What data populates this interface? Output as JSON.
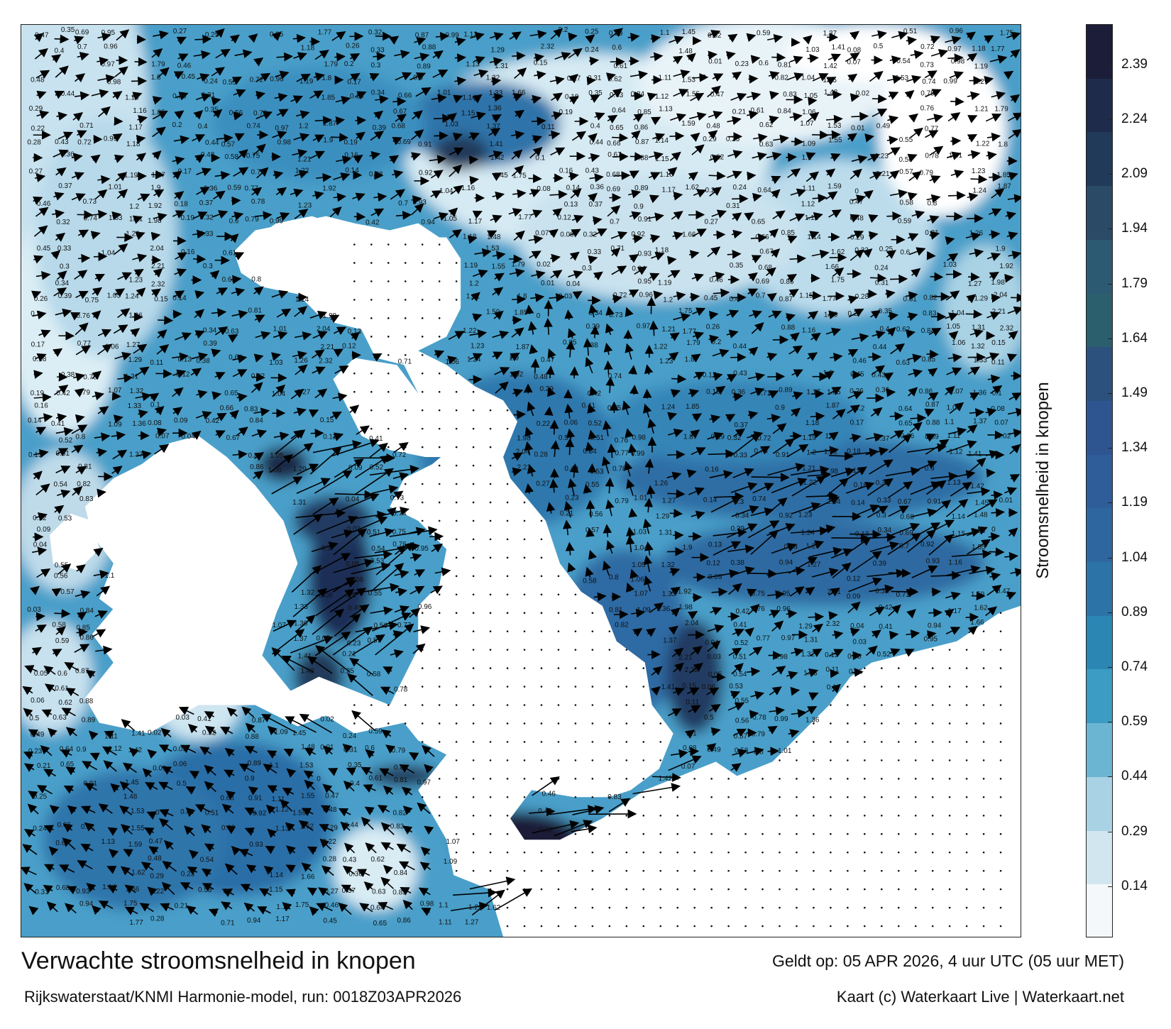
{
  "title": "Verwachte stroomsnelheid in knopen",
  "subtitle": "Rijkswaterstaat/KNMI Harmonie-model, run: 0018Z03APR2026",
  "valid_time": "Geldt op: 05 APR 2026, 4 uur UTC (05 uur MET)",
  "credit": "Kaart (c) Waterkaart Live | Waterkaart.net",
  "colorbar": {
    "label": "Stroomsnelheid in knopen",
    "ticks": [
      "0.14",
      "0.29",
      "0.44",
      "0.59",
      "0.74",
      "0.89",
      "1.04",
      "1.19",
      "1.34",
      "1.49",
      "1.64",
      "1.79",
      "1.94",
      "2.09",
      "2.24",
      "2.39"
    ],
    "colors": [
      "#f4f8fb",
      "#d2e6ef",
      "#a9d2e4",
      "#6bb5d2",
      "#3c9cc3",
      "#2b86b4",
      "#2c74a8",
      "#2e67a0",
      "#2f5d99",
      "#2f5591",
      "#2c517d",
      "#2b5f6e",
      "#2d5a73",
      "#2a4a66",
      "#223a5a",
      "#1e2b4a",
      "#1c1d38"
    ],
    "range": [
      0,
      2.5
    ]
  },
  "speed_labels": [
    "0.47",
    "0.48",
    "0.29",
    "0.22",
    "0.28",
    "0.27",
    "0.46",
    "0.45",
    "0.26",
    "0.2",
    "0.17",
    "0.18",
    "0.19",
    "0.16",
    "0.14",
    "0.13",
    "0.12",
    "0.09",
    "0.04",
    "0.03",
    "0.05",
    "0.06",
    "0.5",
    "0.49",
    "0.23",
    "0.21",
    "0.25",
    "0.24",
    "0.31",
    "0.35",
    "0.4",
    "0.44",
    "0.43",
    "0.36",
    "0.37",
    "0.32",
    "0.33",
    "0.3",
    "0.34",
    "0.39",
    "0.38",
    "0.42",
    "0.41",
    "0.52",
    "0.51",
    "0.54",
    "0.53",
    "0.55",
    "0.56",
    "0.57",
    "0.58",
    "0.59",
    "0.6",
    "0.61",
    "0.62",
    "0.63",
    "0.64",
    "0.65",
    "0.66",
    "0.67",
    "0.68",
    "0.69",
    "0.7",
    "0.71",
    "0.72",
    "0.73",
    "0.74",
    "0.75",
    "0.76",
    "0.77",
    "0.78",
    "0.79",
    "0.8",
    "0.81",
    "0.82",
    "0.83",
    "0.84",
    "0.85",
    "0.86",
    "0.87",
    "0.88",
    "0.89",
    "0.9",
    "0.91",
    "0.92",
    "0.93",
    "0.94",
    "0.95",
    "0.96",
    "0.97",
    "0.98",
    "0.99",
    "1.01",
    "1.03",
    "1.04",
    "1.05",
    "1.06",
    "1.07",
    "1.09",
    "1.1",
    "1.11",
    "1.12",
    "1.13",
    "1.14",
    "1.15",
    "1.16",
    "1.17",
    "1.18",
    "1.19",
    "1.2",
    "1.21",
    "1.22",
    "1.23",
    "1.24",
    "1.26",
    "1.27",
    "1.29",
    "1.31",
    "1.32",
    "1.33",
    "1.36",
    "1.37",
    "1.41",
    "1.42",
    "1.45",
    "1.48",
    "1.53",
    "1.55",
    "1.59",
    "1.62",
    "1.66",
    "1.75",
    "1.77",
    "1.79",
    "1.8",
    "1.85",
    "1.87",
    "1.9",
    "1.92",
    "1.98",
    "2.04",
    "2.21",
    "2.32",
    "0.15",
    "0.11",
    "0.1",
    "0.08",
    "0.07",
    "0.02",
    "0.01",
    "0"
  ]
}
